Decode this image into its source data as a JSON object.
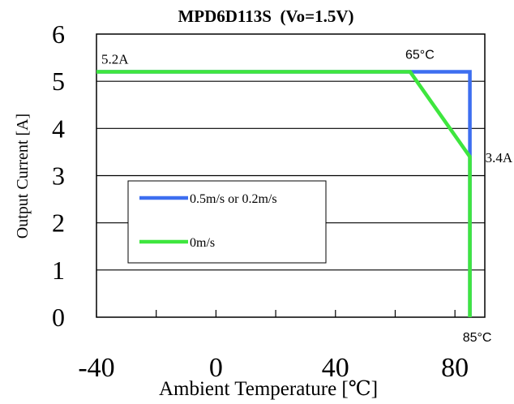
{
  "chart_data": {
    "type": "line",
    "title": "MPD6D113S  (Vo=1.5V)",
    "xlabel": "Ambient Temperature [℃]",
    "ylabel": "Output Current [A]",
    "xlim": [
      -40,
      90
    ],
    "ylim": [
      0,
      6
    ],
    "xticks": [
      -40,
      0,
      40,
      80
    ],
    "xtick_labels": [
      "-40",
      "0",
      "40",
      "80"
    ],
    "yticks": [
      0,
      1,
      2,
      3,
      4,
      5,
      6
    ],
    "ytick_labels": [
      "0",
      "1",
      "2",
      "3",
      "4",
      "5",
      "6"
    ],
    "grid": "horizontal",
    "legend_position": "center-left",
    "series": [
      {
        "name": "0.5m/s or 0.2m/s",
        "color": "#3d6ef0",
        "x": [
          -40,
          85,
          85
        ],
        "y": [
          5.2,
          5.2,
          0
        ]
      },
      {
        "name": "0m/s",
        "color": "#3ee63e",
        "x": [
          -40,
          65,
          85,
          85
        ],
        "y": [
          5.2,
          5.2,
          3.4,
          0
        ]
      }
    ],
    "annotations": [
      {
        "text": "5.2A",
        "x": -40,
        "y": 5.2
      },
      {
        "text": "65°C",
        "x": 65,
        "y": 5.2
      },
      {
        "text": "3.4A",
        "x": 85,
        "y": 3.4
      },
      {
        "text": "85°C",
        "x": 85,
        "y": 0
      }
    ]
  }
}
